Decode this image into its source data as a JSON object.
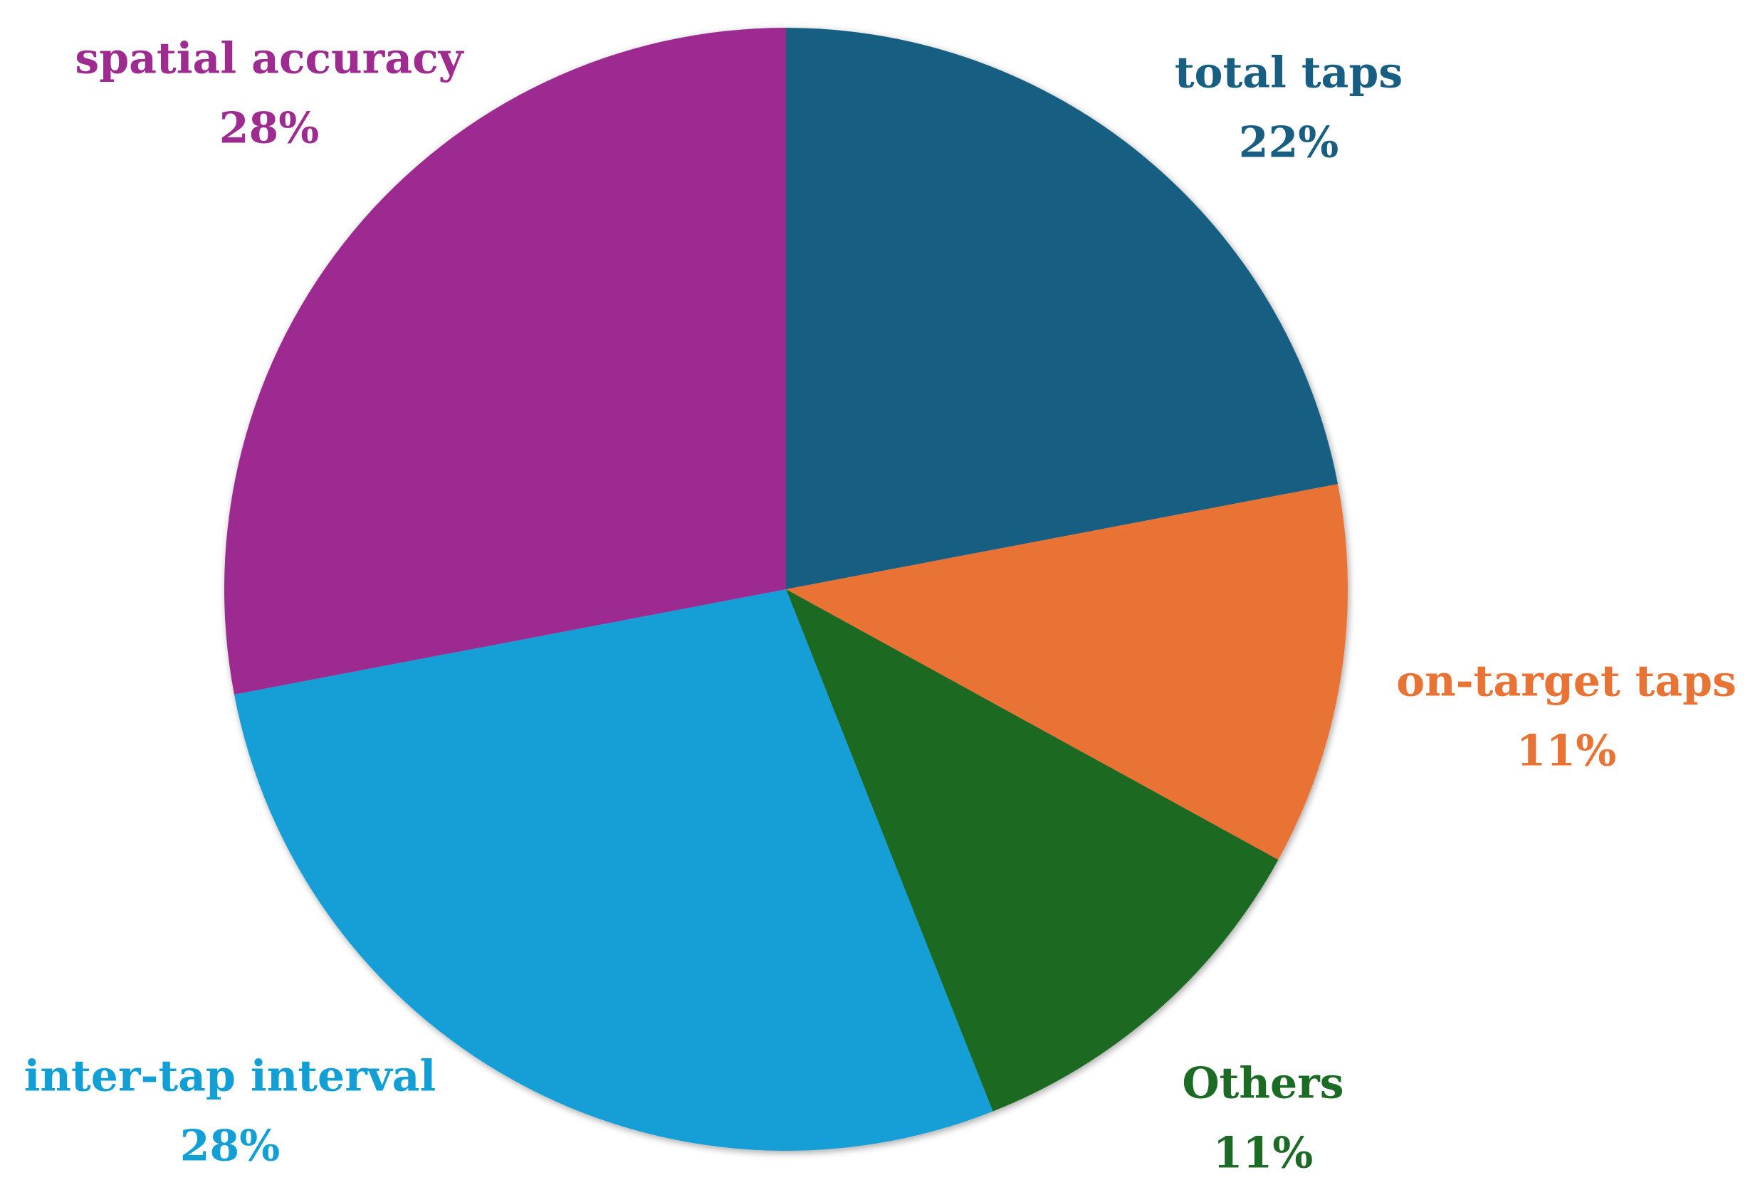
{
  "chart_data": {
    "type": "pie",
    "categories": [
      "total taps",
      "on-target taps",
      "Others",
      "inter-tap interval",
      "spatial accuracy"
    ],
    "values": [
      22,
      11,
      11,
      28,
      28
    ],
    "value_labels": [
      "22%",
      "11%",
      "11%",
      "28%",
      "28%"
    ],
    "colors": [
      "#175e82",
      "#e87335",
      "#1c6b24",
      "#129fd6",
      "#9d2b90"
    ]
  }
}
